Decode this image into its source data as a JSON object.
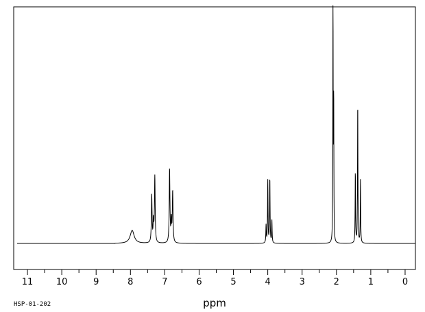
{
  "chart_data": {
    "type": "line",
    "title": "",
    "xlabel": "ppm",
    "ylabel": "",
    "xlim": [
      11.4,
      -0.3
    ],
    "ylim": [
      -0.11,
      1.0
    ],
    "x_reversed": true,
    "grid": false,
    "x_ticks": [
      11,
      10,
      9,
      8,
      7,
      6,
      5,
      4,
      3,
      2,
      1,
      0
    ],
    "x_tick_labels": [
      "11",
      "10",
      "9",
      "8",
      "7",
      "6",
      "5",
      "4",
      "3",
      "2",
      "1",
      "0"
    ],
    "footnote": "HSP-01-202",
    "line_color": "#000000",
    "peaks": [
      {
        "ppm": 7.95,
        "height": 0.055,
        "width": 0.07
      },
      {
        "ppm": 7.38,
        "height": 0.2,
        "width": 0.012
      },
      {
        "ppm": 7.33,
        "height": 0.085,
        "width": 0.012
      },
      {
        "ppm": 7.29,
        "height": 0.28,
        "width": 0.012
      },
      {
        "ppm": 6.86,
        "height": 0.31,
        "width": 0.012
      },
      {
        "ppm": 6.81,
        "height": 0.09,
        "width": 0.012
      },
      {
        "ppm": 6.77,
        "height": 0.215,
        "width": 0.012
      },
      {
        "ppm": 4.05,
        "height": 0.075,
        "width": 0.008
      },
      {
        "ppm": 4.0,
        "height": 0.265,
        "width": 0.008
      },
      {
        "ppm": 3.94,
        "height": 0.275,
        "width": 0.008
      },
      {
        "ppm": 3.88,
        "height": 0.095,
        "width": 0.008
      },
      {
        "ppm": 2.1,
        "height": 1.0,
        "width": 0.006
      },
      {
        "ppm": 2.08,
        "height": 0.6,
        "width": 0.006
      },
      {
        "ppm": 1.45,
        "height": 0.305,
        "width": 0.007
      },
      {
        "ppm": 1.38,
        "height": 0.6,
        "width": 0.007
      },
      {
        "ppm": 1.3,
        "height": 0.27,
        "width": 0.007
      }
    ]
  }
}
